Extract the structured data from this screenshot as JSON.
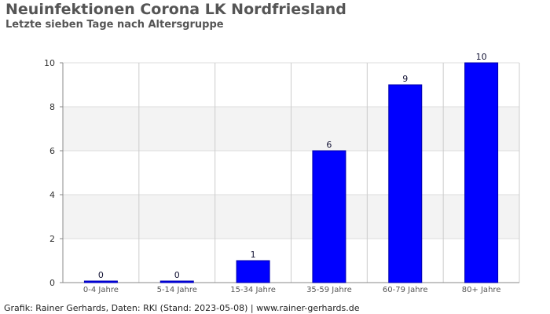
{
  "chart_data": {
    "type": "bar",
    "title": "Neuinfektionen Corona LK Nordfriesland",
    "subtitle": "Letzte sieben Tage nach Altersgruppe",
    "categories": [
      "0-4 Jahre",
      "5-14 Jahre",
      "15-34 Jahre",
      "35-59 Jahre",
      "60-79 Jahre",
      "80+ Jahre"
    ],
    "values": [
      0,
      0,
      1,
      6,
      9,
      10
    ],
    "ylim": [
      0,
      10
    ],
    "yticks": [
      "0",
      "2",
      "4",
      "6",
      "8",
      "10"
    ],
    "xlabel": "",
    "ylabel": "",
    "bar_color": "#0000ff",
    "grid": true,
    "data_labels": true
  },
  "footer": "Grafik: Rainer Gerhards, Daten: RKI (Stand: 2023-05-08) | www.rainer-gerhards.de"
}
